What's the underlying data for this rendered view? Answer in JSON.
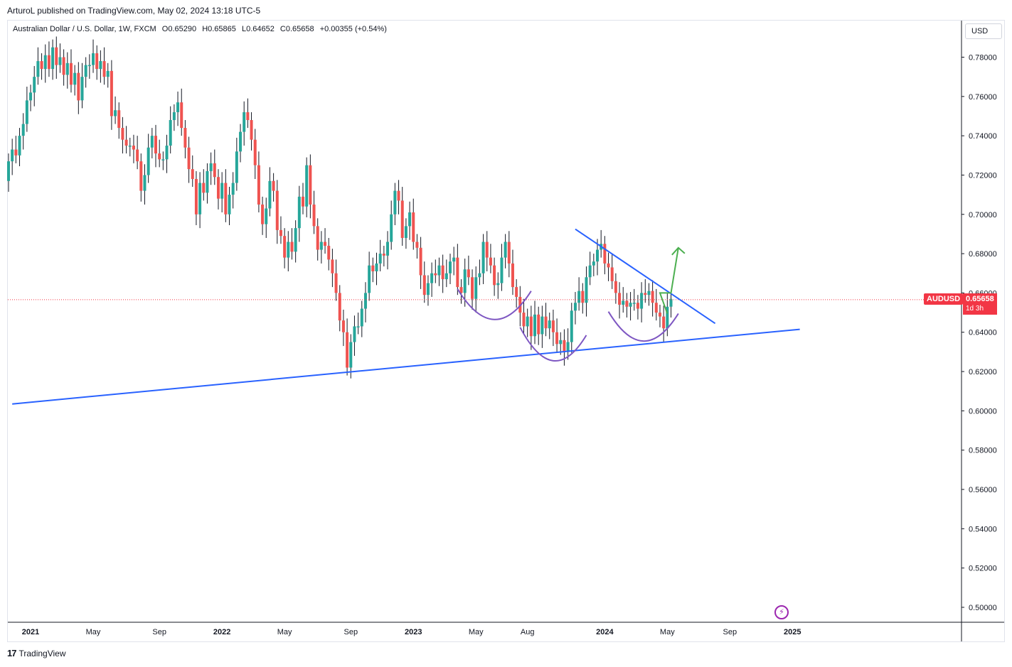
{
  "header": {
    "text": "ArturoL published on TradingView.com, May 02, 2024 13:18 UTC-5"
  },
  "symbol_line": {
    "name": "Australian Dollar / U.S. Dollar, 1W, FXCM",
    "open": "O0.65290",
    "high": "H0.65865",
    "low": "L0.64652",
    "close": "C0.65658",
    "change": "+0.00355 (+0.54%)"
  },
  "currency": "USD",
  "price_tag": {
    "symbol": "AUDUSD",
    "value": "0.65658",
    "countdown": "1d 3h"
  },
  "footer": {
    "brand": "TradingView"
  },
  "colors": {
    "up": "#26a69a",
    "down": "#ef5350",
    "trendline": "#2962ff",
    "arc": "#7e57c2",
    "arrow": "#4caf50",
    "price_line": "#f23645"
  },
  "chart_data": {
    "type": "candlestick",
    "title": "Australian Dollar / U.S. Dollar, 1W, FXCM",
    "ylim": [
      0.491,
      0.8
    ],
    "y_ticks": [
      "0.78000",
      "0.76000",
      "0.74000",
      "0.72000",
      "0.70000",
      "0.68000",
      "0.66000",
      "0.64000",
      "0.62000",
      "0.60000",
      "0.58000",
      "0.56000",
      "0.54000",
      "0.52000",
      "0.50000"
    ],
    "y_tick_values": [
      0.78,
      0.76,
      0.74,
      0.72,
      0.7,
      0.68,
      0.66,
      0.64,
      0.62,
      0.6,
      0.58,
      0.56,
      0.54,
      0.52,
      0.5
    ],
    "x_ticks": [
      {
        "label": "2021",
        "week": 6,
        "bold": true
      },
      {
        "label": "May",
        "week": 23,
        "bold": false
      },
      {
        "label": "Sep",
        "week": 41,
        "bold": false
      },
      {
        "label": "2022",
        "week": 58,
        "bold": true
      },
      {
        "label": "May",
        "week": 75,
        "bold": false
      },
      {
        "label": "Sep",
        "week": 93,
        "bold": false
      },
      {
        "label": "2023",
        "week": 110,
        "bold": true
      },
      {
        "label": "May",
        "week": 127,
        "bold": false
      },
      {
        "label": "Aug",
        "week": 141,
        "bold": false
      },
      {
        "label": "2024",
        "week": 162,
        "bold": true
      },
      {
        "label": "May",
        "week": 179,
        "bold": false
      },
      {
        "label": "Sep",
        "week": 196,
        "bold": false
      },
      {
        "label": "2025",
        "week": 213,
        "bold": true
      }
    ],
    "current_price": 0.65658,
    "closes": [
      0.727,
      0.733,
      0.73,
      0.74,
      0.746,
      0.758,
      0.762,
      0.77,
      0.778,
      0.774,
      0.781,
      0.774,
      0.785,
      0.776,
      0.78,
      0.771,
      0.777,
      0.766,
      0.772,
      0.758,
      0.77,
      0.776,
      0.776,
      0.782,
      0.774,
      0.778,
      0.77,
      0.773,
      0.75,
      0.753,
      0.744,
      0.738,
      0.735,
      0.735,
      0.733,
      0.727,
      0.712,
      0.72,
      0.734,
      0.74,
      0.731,
      0.728,
      0.728,
      0.735,
      0.748,
      0.752,
      0.757,
      0.744,
      0.734,
      0.723,
      0.718,
      0.7,
      0.716,
      0.711,
      0.722,
      0.726,
      0.719,
      0.708,
      0.716,
      0.7,
      0.71,
      0.716,
      0.732,
      0.742,
      0.752,
      0.748,
      0.738,
      0.725,
      0.705,
      0.695,
      0.703,
      0.717,
      0.712,
      0.692,
      0.689,
      0.678,
      0.686,
      0.681,
      0.693,
      0.709,
      0.704,
      0.725,
      0.705,
      0.694,
      0.682,
      0.686,
      0.684,
      0.677,
      0.67,
      0.66,
      0.646,
      0.64,
      0.622,
      0.635,
      0.643,
      0.643,
      0.652,
      0.66,
      0.674,
      0.671,
      0.675,
      0.68,
      0.679,
      0.686,
      0.7,
      0.712,
      0.707,
      0.688,
      0.694,
      0.701,
      0.686,
      0.683,
      0.669,
      0.659,
      0.665,
      0.67,
      0.669,
      0.674,
      0.667,
      0.67,
      0.676,
      0.678,
      0.663,
      0.66,
      0.672,
      0.668,
      0.657,
      0.668,
      0.67,
      0.686,
      0.678,
      0.674,
      0.664,
      0.665,
      0.678,
      0.686,
      0.675,
      0.663,
      0.658,
      0.65,
      0.643,
      0.648,
      0.638,
      0.649,
      0.639,
      0.648,
      0.642,
      0.646,
      0.64,
      0.634,
      0.636,
      0.63,
      0.635,
      0.651,
      0.655,
      0.661,
      0.655,
      0.668,
      0.674,
      0.676,
      0.682,
      0.685,
      0.675,
      0.673,
      0.666,
      0.66,
      0.654,
      0.656,
      0.653,
      0.655,
      0.655,
      0.652,
      0.66,
      0.659,
      0.661,
      0.655,
      0.65,
      0.648,
      0.642,
      0.653,
      0.657
    ],
    "annotations": [
      {
        "type": "trendline",
        "label": "support",
        "from": [
          1,
          0.6035
        ],
        "to": [
          215,
          0.6415
        ]
      },
      {
        "type": "trendline",
        "label": "resistance",
        "from": [
          154,
          0.6925
        ],
        "to": [
          192,
          0.6445
        ]
      },
      {
        "type": "arc",
        "label": "left shoulder",
        "from": [
          122,
          0.662
        ],
        "to": [
          142,
          0.661
        ],
        "low": 0.6465
      },
      {
        "type": "arc",
        "label": "head",
        "from": [
          139,
          0.6425
        ],
        "to": [
          157,
          0.6385
        ],
        "low": 0.6255
      },
      {
        "type": "arc",
        "label": "right shoulder",
        "from": [
          163,
          0.6505
        ],
        "to": [
          182,
          0.6495
        ],
        "low": 0.6355
      },
      {
        "type": "arrow",
        "label": "breakout projection",
        "points": [
          [
            179,
            0.6495
          ],
          [
            177,
            0.66
          ],
          [
            180,
            0.66
          ],
          [
            182,
            0.683
          ]
        ]
      }
    ]
  }
}
